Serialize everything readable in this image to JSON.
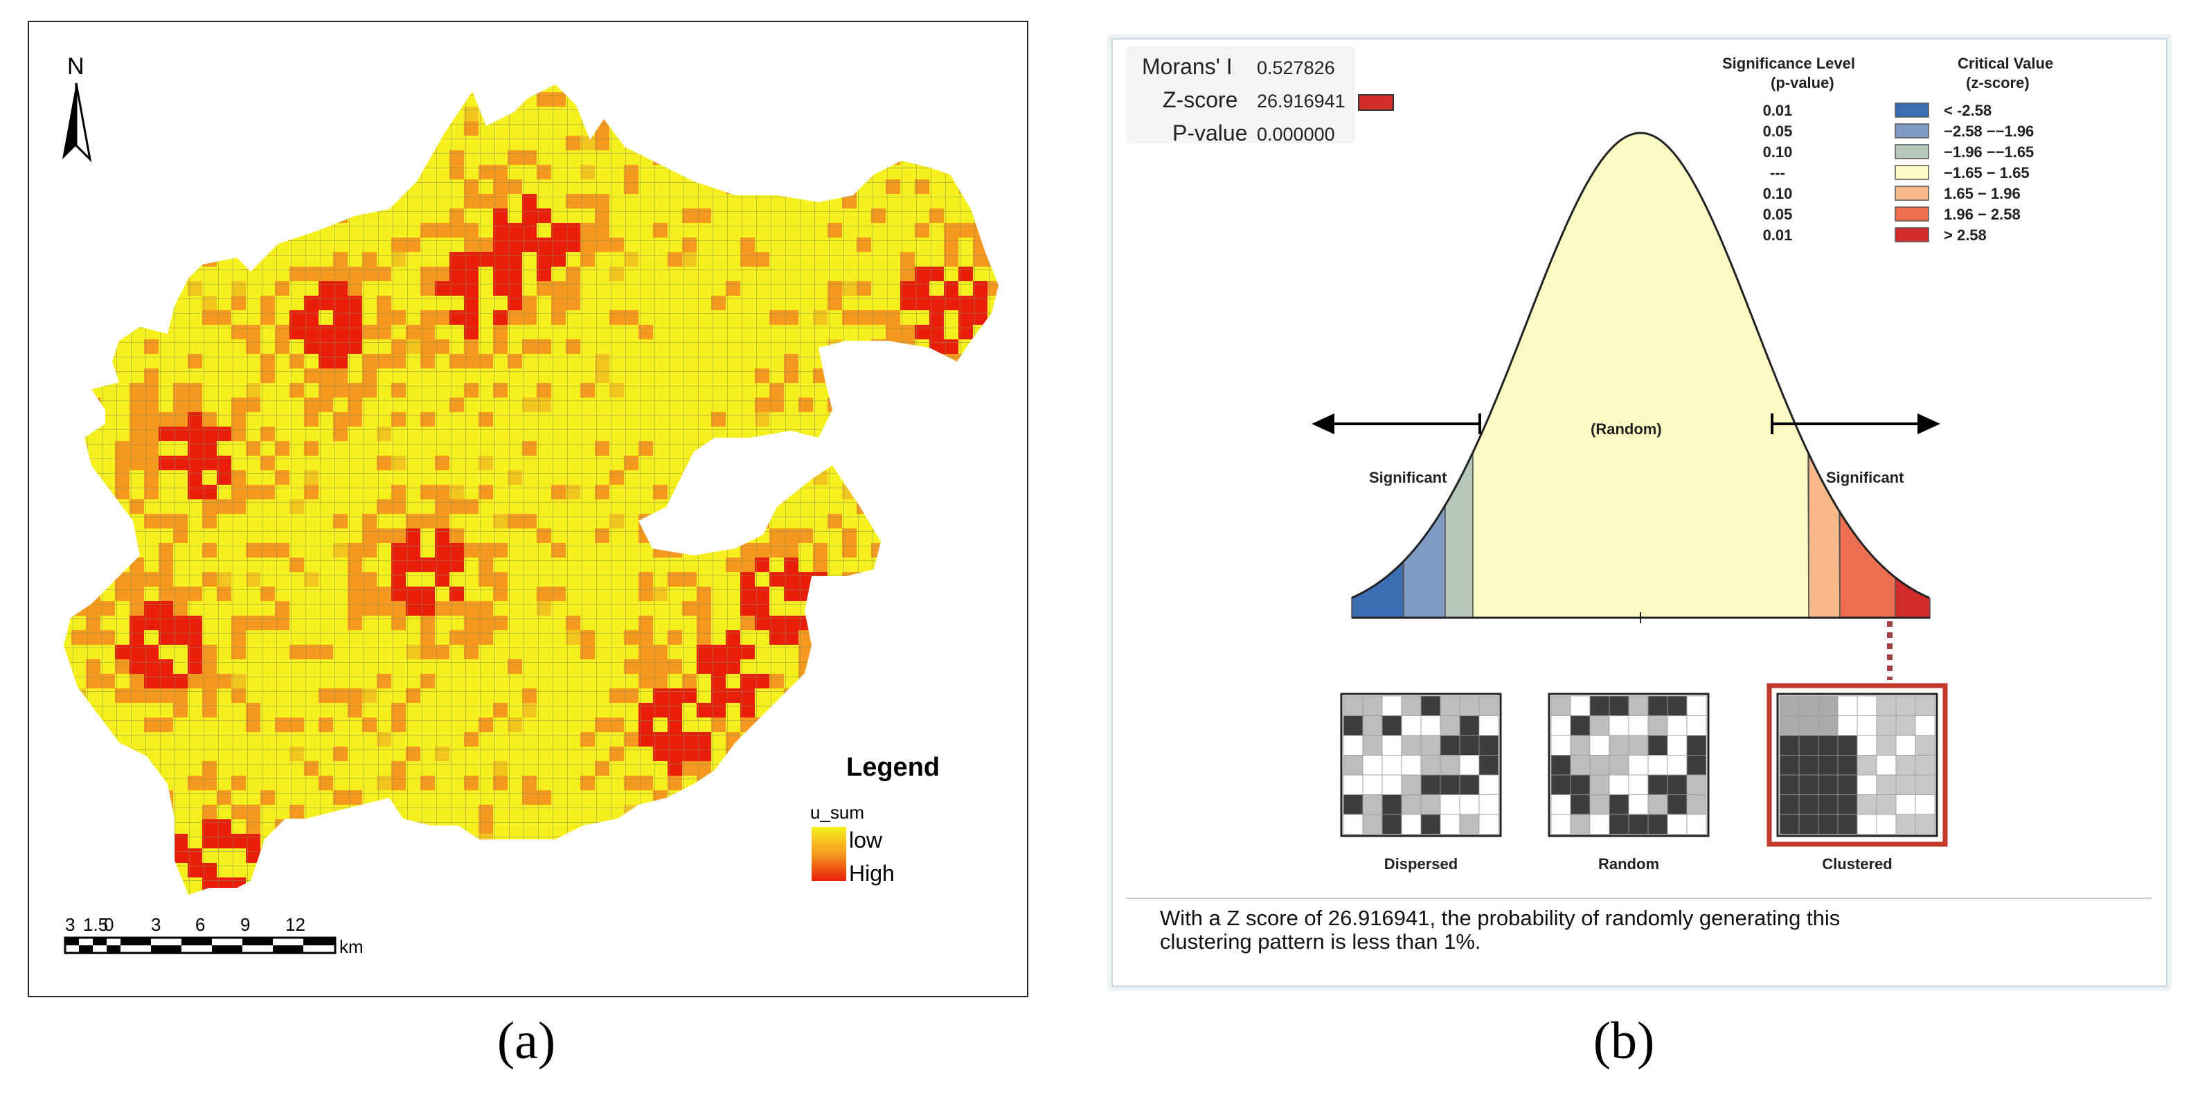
{
  "panel_a": {
    "north_label": "N",
    "legend": {
      "title": "Legend",
      "field": "u_sum",
      "low_label": "low",
      "high_label": "High",
      "colors": {
        "low": "#f6f01e",
        "mid": "#f59a1e",
        "high": "#e81e0a"
      }
    },
    "scale_bar": {
      "tick_labels": [
        "3",
        "1.5",
        "0",
        "3",
        "6",
        "9",
        "12"
      ],
      "unit": "km"
    },
    "caption": "(a)"
  },
  "panel_b": {
    "stats": {
      "morans_label": "Morans' I",
      "morans_value": "0.527826",
      "zscore_label": "Z-score",
      "zscore_value": "26.916941",
      "pvalue_label": "P-value",
      "pvalue_value": "0.000000"
    },
    "legend": {
      "sig_header_line1": "Significance Level",
      "sig_header_line2": "(p-value)",
      "crit_header_line1": "Critical Value",
      "crit_header_line2": "(z-score)",
      "rows": [
        {
          "p": "0.01",
          "z": "< -2.58",
          "color": "#3b6db3"
        },
        {
          "p": "0.05",
          "z": "−2.58 −−1.96",
          "color": "#7f9ac3"
        },
        {
          "p": "0.10",
          "z": "−1.96 −−1.65",
          "color": "#b7c7b9"
        },
        {
          "p": "---",
          "z": "−1.65 − 1.65",
          "color": "#fdfbc4"
        },
        {
          "p": "0.10",
          "z": "1.65 − 1.96",
          "color": "#f7b98a"
        },
        {
          "p": "0.05",
          "z": "1.96 − 2.58",
          "color": "#ec6f4f"
        },
        {
          "p": "0.01",
          "z": "> 2.58",
          "color": "#d42b2b"
        }
      ]
    },
    "curve_labels": {
      "left": "Significant",
      "center": "(Random)",
      "right": "Significant"
    },
    "patterns": [
      "Dispersed",
      "Random",
      "Clustered"
    ],
    "summary": "With a Z score of 26.916941, the probability of randomly generating this clustering pattern is less than 1%.",
    "caption": "(b)"
  }
}
